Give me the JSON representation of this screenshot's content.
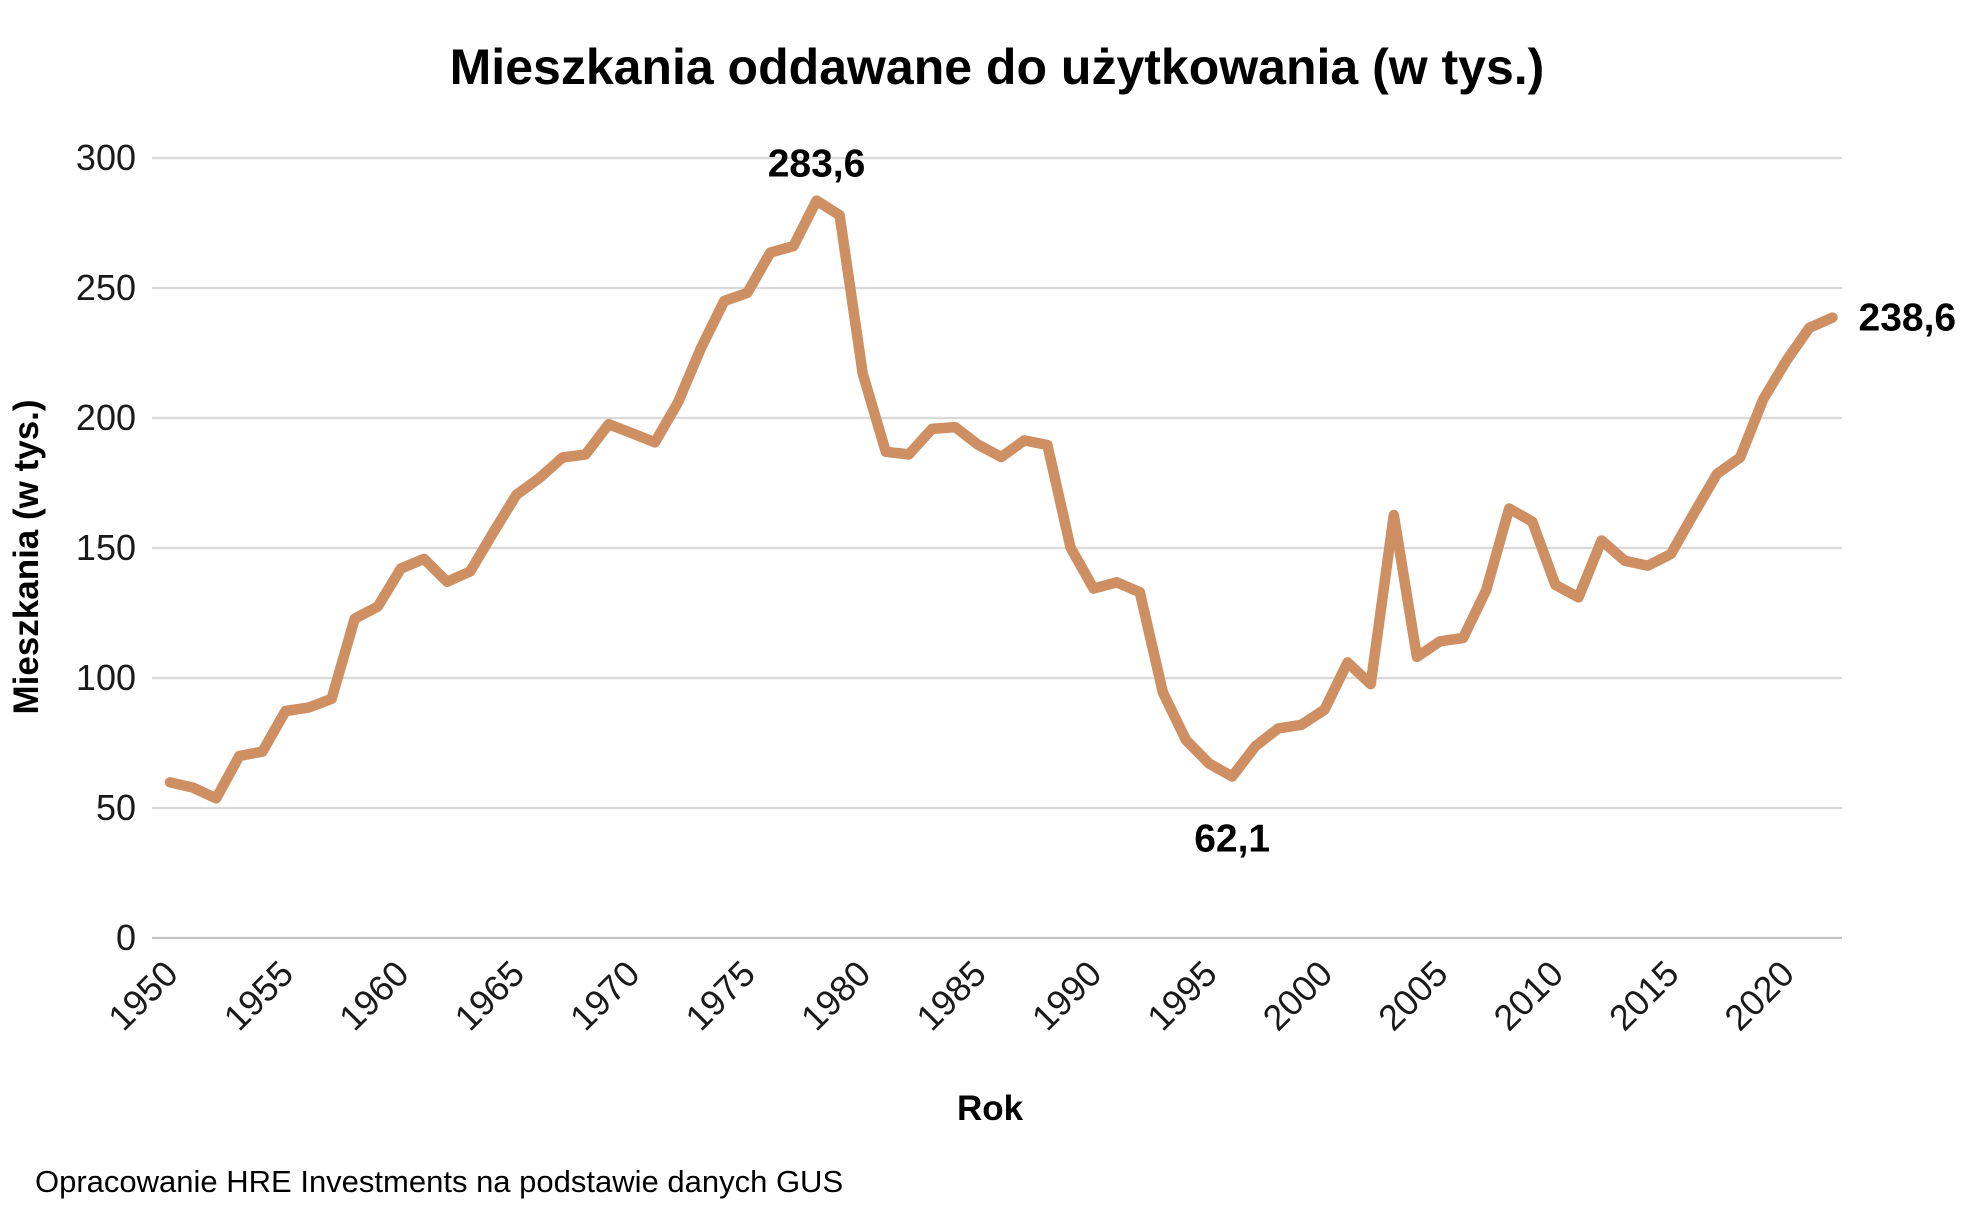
{
  "title": "Mieszkania oddawane do użytkowania (w tys.)",
  "x_axis_title": "Rok",
  "y_axis_title": "Mieszkania (w tys.)",
  "footer": "Opracowanie HRE Investments na podstawie danych GUS",
  "colors": {
    "line": "#CE8F63",
    "gridline": "#D9D9D9",
    "axis_line": "#C3C3C3",
    "text": "#000000"
  },
  "chart_data": {
    "type": "line",
    "title": "Mieszkania oddawane do użytkowania (w tys.)",
    "xlabel": "Rok",
    "ylabel": "Mieszkania (w tys.)",
    "xlim": [
      1950,
      2022
    ],
    "ylim": [
      0,
      300
    ],
    "grid": "horizontal",
    "legend": "none",
    "y_ticks": [
      0,
      50,
      100,
      150,
      200,
      250,
      300
    ],
    "y_tick_labels": [
      "0",
      "50",
      "100",
      "150",
      "200",
      "250",
      "300"
    ],
    "x_tick_labels": [
      "1950",
      "1955",
      "1960",
      "1965",
      "1970",
      "1975",
      "1980",
      "1985",
      "1990",
      "1995",
      "2000",
      "2005",
      "2010",
      "2015",
      "2020"
    ],
    "x": [
      1950,
      1951,
      1952,
      1953,
      1954,
      1955,
      1956,
      1957,
      1958,
      1959,
      1960,
      1961,
      1962,
      1963,
      1964,
      1965,
      1966,
      1967,
      1968,
      1969,
      1970,
      1971,
      1972,
      1973,
      1974,
      1975,
      1976,
      1977,
      1978,
      1979,
      1980,
      1981,
      1982,
      1983,
      1984,
      1985,
      1986,
      1987,
      1988,
      1989,
      1990,
      1991,
      1992,
      1993,
      1994,
      1995,
      1996,
      1997,
      1998,
      1999,
      2000,
      2001,
      2002,
      2003,
      2004,
      2005,
      2006,
      2007,
      2008,
      2009,
      2010,
      2011,
      2012,
      2013,
      2014,
      2015,
      2016,
      2017,
      2018,
      2019,
      2020,
      2021,
      2022
    ],
    "values": [
      59.9,
      57.8,
      53.7,
      70.0,
      71.7,
      87.3,
      88.6,
      92.0,
      122.8,
      127.5,
      142.1,
      145.8,
      137.0,
      141.0,
      156.0,
      170.5,
      176.9,
      184.8,
      186.0,
      197.6,
      194.2,
      190.6,
      206.0,
      227.0,
      245.0,
      248.1,
      263.6,
      266.1,
      283.6,
      278.0,
      217.1,
      187.0,
      186.0,
      195.8,
      196.5,
      189.7,
      185.0,
      191.4,
      189.6,
      150.2,
      134.4,
      136.8,
      133.0,
      94.4,
      76.1,
      67.1,
      62.1,
      73.7,
      80.6,
      82.0,
      87.8,
      106.0,
      97.6,
      162.7,
      108.1,
      114.1,
      115.4,
      133.7,
      165.2,
      160.1,
      135.8,
      131.0,
      152.9,
      145.1,
      143.2,
      147.7,
      163.4,
      178.5,
      184.8,
      207.2,
      222.0,
      234.7,
      238.6
    ],
    "annotations": [
      {
        "x": 1978,
        "value": 283.6,
        "text": "283,6",
        "position": "above"
      },
      {
        "x": 1996,
        "value": 62.1,
        "text": "62,1",
        "position": "below"
      },
      {
        "x": 2022,
        "value": 238.6,
        "text": "238,6",
        "position": "right"
      }
    ]
  }
}
